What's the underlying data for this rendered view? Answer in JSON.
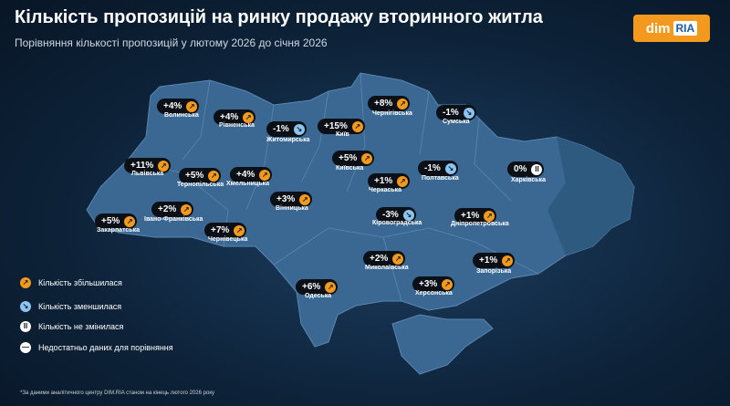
{
  "header": {
    "title": "Кількість пропозицій на ринку продажу вторинного житла",
    "subtitle": "Порівняння кількості пропозицій у лютому 2026 до січня 2026"
  },
  "logo": {
    "left": "dim",
    "right": "RIA"
  },
  "regions": [
    {
      "name": "Волинська",
      "change": "+4%",
      "trend": "up"
    },
    {
      "name": "Рівненська",
      "change": "+4%",
      "trend": "up"
    },
    {
      "name": "Житомирська",
      "change": "-1%",
      "trend": "down"
    },
    {
      "name": "Київ",
      "change": "+15%",
      "trend": "up"
    },
    {
      "name": "Чернігівська",
      "change": "+8%",
      "trend": "up"
    },
    {
      "name": "Сумська",
      "change": "-1%",
      "trend": "down"
    },
    {
      "name": "Львівська",
      "change": "+11%",
      "trend": "up"
    },
    {
      "name": "Тернопільська",
      "change": "+5%",
      "trend": "up"
    },
    {
      "name": "Хмельницька",
      "change": "+4%",
      "trend": "up"
    },
    {
      "name": "Київська",
      "change": "+5%",
      "trend": "up"
    },
    {
      "name": "Черкаська",
      "change": "+1%",
      "trend": "up"
    },
    {
      "name": "Полтавська",
      "change": "-1%",
      "trend": "down"
    },
    {
      "name": "Харківська",
      "change": "0%",
      "trend": "same"
    },
    {
      "name": "Вінницька",
      "change": "+3%",
      "trend": "up"
    },
    {
      "name": "Івано-Франківська",
      "change": "+2%",
      "trend": "up"
    },
    {
      "name": "Закарпатська",
      "change": "+5%",
      "trend": "up"
    },
    {
      "name": "Чернівецька",
      "change": "+7%",
      "trend": "up"
    },
    {
      "name": "Кіровоградська",
      "change": "-3%",
      "trend": "down"
    },
    {
      "name": "Дніпропетровська",
      "change": "+1%",
      "trend": "up"
    },
    {
      "name": "Миколаївська",
      "change": "+2%",
      "trend": "up"
    },
    {
      "name": "Запорізька",
      "change": "+1%",
      "trend": "up"
    },
    {
      "name": "Одеська",
      "change": "+6%",
      "trend": "up"
    },
    {
      "name": "Херсонська",
      "change": "+3%",
      "trend": "up"
    }
  ],
  "legend": [
    {
      "trend": "up",
      "label": "Кількість збільшилася"
    },
    {
      "trend": "down",
      "label": "Кількість зменшилася"
    },
    {
      "trend": "same",
      "label": "Кількість не змінилася"
    },
    {
      "trend": "nodata",
      "label": "Недостатньо даних для порівняння"
    }
  ],
  "footnote": "*За даними аналітичного центру DIM.RIA станом на кінець лютого 2026 року"
}
